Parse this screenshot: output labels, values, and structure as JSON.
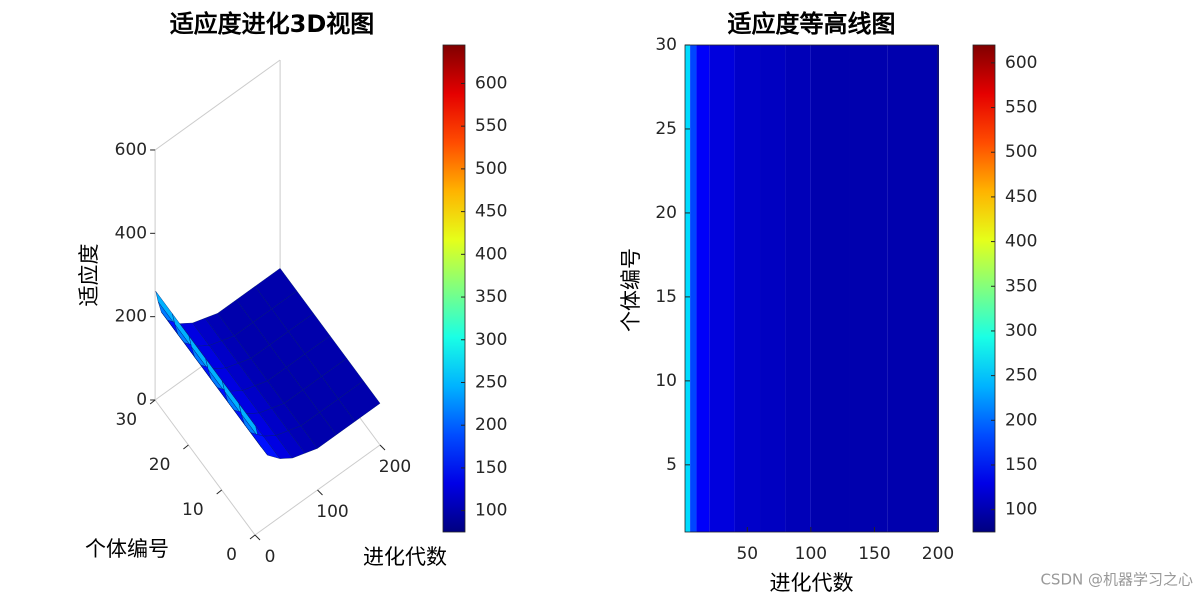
{
  "chart_data": [
    {
      "type": "surface3d",
      "title": "适应度进化3D视图",
      "xlabel": "进化代数",
      "ylabel": "个体编号",
      "zlabel": "适应度",
      "x": [
        1,
        5,
        10,
        20,
        40,
        60,
        80,
        100,
        130,
        160,
        200
      ],
      "values": [
        260,
        230,
        200,
        170,
        140,
        120,
        110,
        100,
        100,
        100,
        100
      ],
      "xlim": [
        0,
        200
      ],
      "xticks": [
        0,
        100,
        200
      ],
      "ylim": [
        0,
        30
      ],
      "yticks": [
        0,
        10,
        20,
        30
      ],
      "zlim": [
        0,
        600
      ],
      "zticks": [
        0,
        200,
        400,
        600
      ],
      "clim": [
        75,
        645
      ],
      "cticks": [
        100,
        150,
        200,
        250,
        300,
        350,
        400,
        450,
        500,
        550,
        600
      ],
      "colormap": "jet"
    },
    {
      "type": "heatmap",
      "title": "适应度等高线图",
      "xlabel": "进化代数",
      "ylabel": "个体编号",
      "x": [
        1,
        5,
        10,
        20,
        40,
        60,
        80,
        100,
        130,
        160,
        200
      ],
      "values": [
        260,
        180,
        140,
        125,
        115,
        110,
        105,
        100,
        100,
        100,
        100
      ],
      "xlim": [
        1,
        200
      ],
      "xticks": [
        50,
        100,
        150,
        200
      ],
      "ylim": [
        1,
        30
      ],
      "yticks": [
        5,
        10,
        15,
        20,
        25,
        30
      ],
      "clim": [
        75,
        620
      ],
      "cticks": [
        100,
        150,
        200,
        250,
        300,
        350,
        400,
        450,
        500,
        550,
        600
      ],
      "colormap": "jet"
    }
  ],
  "watermark": "CSDN @机器学习之心"
}
